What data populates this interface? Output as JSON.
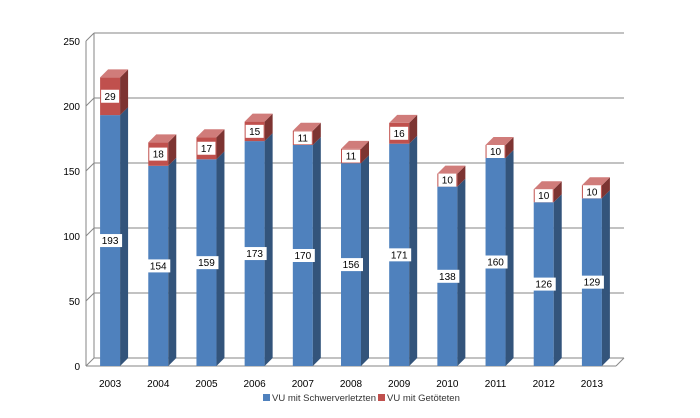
{
  "chart_data": {
    "type": "bar",
    "stacked": true,
    "three_d": true,
    "categories": [
      "2003",
      "2004",
      "2005",
      "2006",
      "2007",
      "2008",
      "2009",
      "2010",
      "2011",
      "2012",
      "2013"
    ],
    "series": [
      {
        "name": "VU mit Schwerverletzten",
        "color": "#4f81bd",
        "values": [
          193,
          154,
          159,
          173,
          170,
          156,
          171,
          138,
          160,
          126,
          129
        ]
      },
      {
        "name": "VU mit Getöteten",
        "color": "#c0504d",
        "values": [
          29,
          18,
          17,
          15,
          11,
          11,
          16,
          10,
          10,
          10,
          10
        ]
      }
    ],
    "ylim": [
      0,
      250
    ],
    "yticks": [
      0,
      50,
      100,
      150,
      200,
      250
    ],
    "grid": true,
    "legend_position": "bottom",
    "title": "",
    "xlabel": "",
    "ylabel": ""
  }
}
